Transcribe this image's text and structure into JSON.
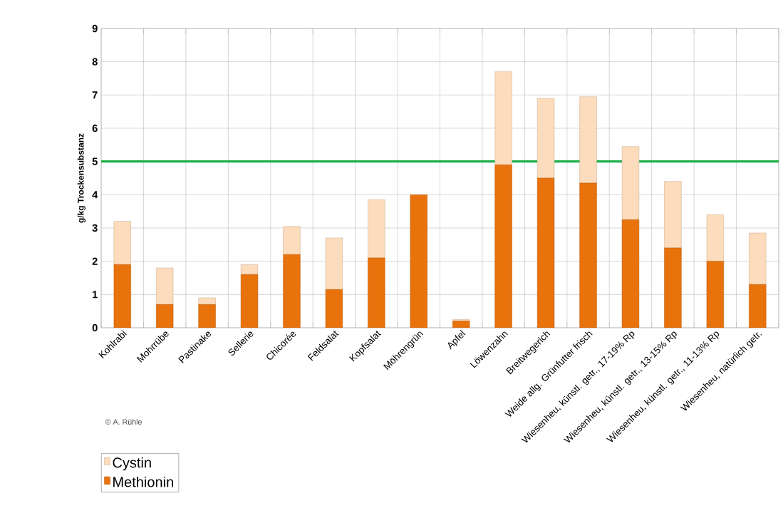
{
  "chart_data": {
    "type": "bar",
    "stacked": true,
    "ylabel": "g/kg Trockensubstanz",
    "categories": [
      "Kohlrabi",
      "Mohrrübe",
      "Pastinake",
      "Sellerie",
      "Chicorée",
      "Feldsalat",
      "Kopfsalat",
      "Möhrengrün",
      "Apfel",
      "Löwenzahn",
      "Breitwegerich",
      "Weide allg. Grünfutter frisch",
      "Wiesenheu, künstl. getr., 17-19% Rp",
      "Wiesenheu, künstl. getr., 13-15% Rp",
      "Wiesenheu, künstl. getr., 11-13% Rp",
      "Wiesenheu, natürlich getr."
    ],
    "series": [
      {
        "name": "Methionin",
        "color": "#e8720c",
        "values": [
          1.9,
          0.7,
          0.7,
          1.6,
          2.2,
          1.15,
          2.1,
          4.0,
          0.2,
          4.9,
          4.5,
          4.35,
          3.25,
          2.4,
          2.0,
          1.3
        ]
      },
      {
        "name": "Cystin",
        "color": "#fcdcbc",
        "values": [
          1.3,
          1.1,
          0.2,
          0.3,
          0.85,
          1.55,
          1.75,
          0,
          0.05,
          2.8,
          2.4,
          2.6,
          2.2,
          2.0,
          1.4,
          1.55
        ]
      }
    ],
    "ylim": [
      0,
      9
    ],
    "yticks": [
      0,
      1,
      2,
      3,
      4,
      5,
      6,
      7,
      8,
      9
    ],
    "grid": true,
    "legend": "bottom left",
    "ref_lines": [
      {
        "axis": "y",
        "value": 5,
        "color": "#1aaf4a"
      }
    ],
    "annotations": [
      "© A. Rühle"
    ]
  }
}
